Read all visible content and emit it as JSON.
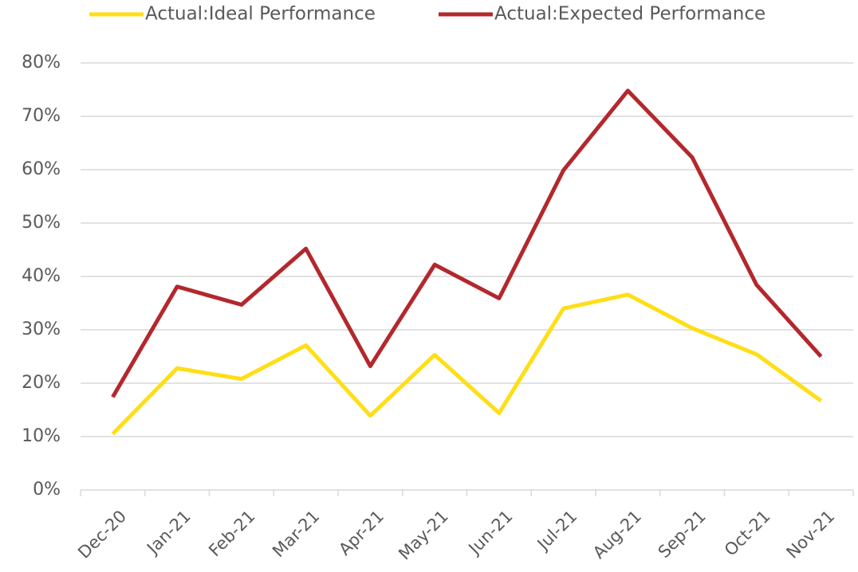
{
  "chart_data": {
    "type": "line",
    "categories": [
      "Dec-20",
      "Jan-21",
      "Feb-21",
      "Mar-21",
      "Apr-21",
      "May-21",
      "Jun-21",
      "Jul-21",
      "Aug-21",
      "Sep-21",
      "Oct-21",
      "Nov-21"
    ],
    "series": [
      {
        "name": "Actual:Ideal Performance",
        "color": "#ffde17",
        "values": [
          10.5,
          22.8,
          20.8,
          27.1,
          13.9,
          25.3,
          14.4,
          34.0,
          36.6,
          30.3,
          25.4,
          16.7
        ]
      },
      {
        "name": "Actual:Expected Performance",
        "color": "#b3282d",
        "values": [
          17.4,
          38.1,
          34.7,
          45.2,
          23.2,
          42.2,
          35.9,
          59.9,
          74.8,
          62.3,
          38.4,
          25.0
        ]
      }
    ],
    "ylim": [
      0,
      80
    ],
    "yticks": [
      {
        "value": 0,
        "label": "0%"
      },
      {
        "value": 10,
        "label": "10%"
      },
      {
        "value": 20,
        "label": "20%"
      },
      {
        "value": 30,
        "label": "30%"
      },
      {
        "value": 40,
        "label": "40%"
      },
      {
        "value": 50,
        "label": "50%"
      },
      {
        "value": 60,
        "label": "60%"
      },
      {
        "value": 70,
        "label": "70%"
      },
      {
        "value": 80,
        "label": "80%"
      }
    ],
    "grid": true,
    "legend": "top"
  }
}
